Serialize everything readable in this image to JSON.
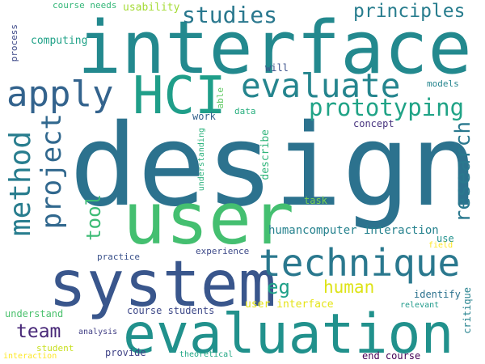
{
  "words": [
    {
      "text": "design",
      "color": "#2c728e"
    },
    {
      "text": "interface",
      "color": "#23898e"
    },
    {
      "text": "system",
      "color": "#39568c"
    },
    {
      "text": "evaluation",
      "color": "#21918c"
    },
    {
      "text": "user",
      "color": "#44bf70"
    },
    {
      "text": "technique",
      "color": "#2a788e"
    },
    {
      "text": "HCI",
      "color": "#1f9e89"
    },
    {
      "text": "evaluate",
      "color": "#25858e"
    },
    {
      "text": "apply",
      "color": "#33638d"
    },
    {
      "text": "method",
      "color": "#287d8e"
    },
    {
      "text": "project",
      "color": "#31688e"
    },
    {
      "text": "prototyping",
      "color": "#20a386"
    },
    {
      "text": "research",
      "color": "#2a788e"
    },
    {
      "text": "studies",
      "color": "#2a788e"
    },
    {
      "text": "principles",
      "color": "#287d8e"
    },
    {
      "text": "tool",
      "color": "#3cbb75"
    },
    {
      "text": "eg",
      "color": "#1fa088"
    },
    {
      "text": "human",
      "color": "#dde318"
    },
    {
      "text": "team",
      "color": "#482878"
    },
    {
      "text": "humancomputer interaction",
      "color": "#26828e"
    },
    {
      "text": "computing",
      "color": "#1fa187"
    },
    {
      "text": "usability",
      "color": "#a5db36"
    },
    {
      "text": "course needs",
      "color": "#35b779"
    },
    {
      "text": "process",
      "color": "#3e4a89"
    },
    {
      "text": "will",
      "color": "#3b528b"
    },
    {
      "text": "able",
      "color": "#5ec962"
    },
    {
      "text": "data",
      "color": "#29af7f"
    },
    {
      "text": "work",
      "color": "#33638d"
    },
    {
      "text": "concept",
      "color": "#46327e"
    },
    {
      "text": "models",
      "color": "#25858e"
    },
    {
      "text": "understanding",
      "color": "#2db27d"
    },
    {
      "text": "describe",
      "color": "#31b57b"
    },
    {
      "text": "task",
      "color": "#7ad151"
    },
    {
      "text": "use",
      "color": "#21918c"
    },
    {
      "text": "field",
      "color": "#fde725"
    },
    {
      "text": "critique",
      "color": "#26828e"
    },
    {
      "text": "experience",
      "color": "#3e4a89"
    },
    {
      "text": "practice",
      "color": "#3b528b"
    },
    {
      "text": "identify",
      "color": "#2c728e"
    },
    {
      "text": "understand",
      "color": "#4ac16d"
    },
    {
      "text": "course students",
      "color": "#3e4989"
    },
    {
      "text": "user interface",
      "color": "#e5e419"
    },
    {
      "text": "relevant",
      "color": "#1f9a8a"
    },
    {
      "text": "analysis",
      "color": "#424086"
    },
    {
      "text": "provide",
      "color": "#404387"
    },
    {
      "text": "student",
      "color": "#c8e020"
    },
    {
      "text": "interaction",
      "color": "#fde725"
    },
    {
      "text": "theoretical",
      "color": "#22a785"
    },
    {
      "text": "end course",
      "color": "#440154"
    }
  ]
}
